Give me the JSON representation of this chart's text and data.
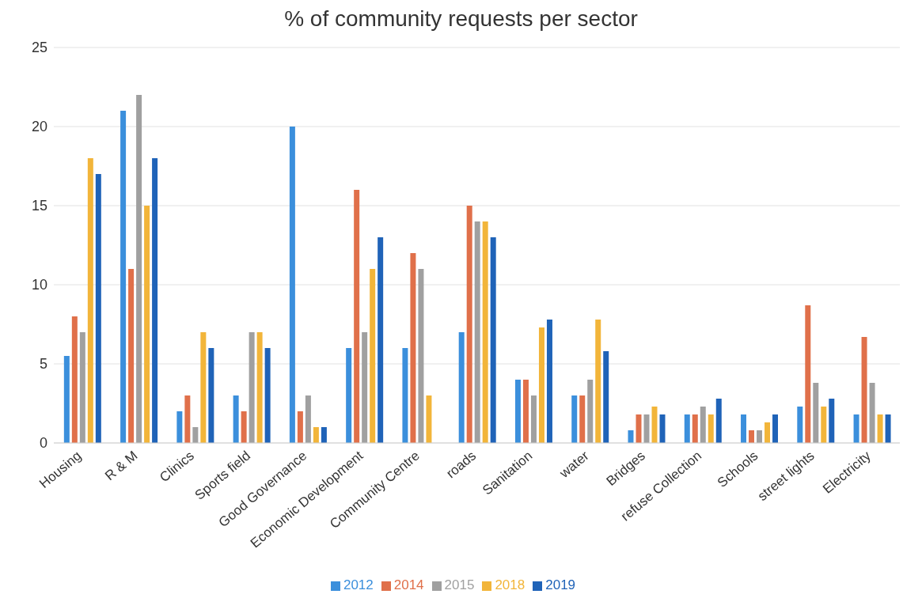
{
  "chart_data": {
    "type": "bar",
    "title": "% of community requests per sector",
    "categories": [
      "Housing",
      "R & M",
      "Clinics",
      "Sports field",
      "Good Governance",
      "Economic Development",
      "Community Centre",
      "roads",
      "Sanitation",
      "water",
      "Bridges",
      "refuse Collection",
      "Schools",
      "street lights",
      "Electricity"
    ],
    "series": [
      {
        "name": "2012",
        "color": "#3b8fdc",
        "values": [
          5.5,
          21,
          2,
          3,
          20,
          6,
          6,
          7,
          4,
          3,
          0.8,
          1.8,
          1.8,
          2.3,
          1.8
        ]
      },
      {
        "name": "2014",
        "color": "#e0704a",
        "values": [
          8,
          11,
          3,
          2,
          2,
          16,
          12,
          15,
          4,
          3,
          1.8,
          1.8,
          0.8,
          8.7,
          6.7
        ]
      },
      {
        "name": "2015",
        "color": "#a0a0a0",
        "values": [
          7,
          22,
          1,
          7,
          3,
          7,
          11,
          14,
          3,
          4,
          1.8,
          2.3,
          0.8,
          3.8,
          3.8
        ]
      },
      {
        "name": "2018",
        "color": "#f2b53a",
        "values": [
          18,
          15,
          7,
          7,
          1,
          11,
          3,
          14,
          7.3,
          7.8,
          2.3,
          1.8,
          1.3,
          2.3,
          1.8
        ]
      },
      {
        "name": "2019",
        "color": "#1f63b8",
        "values": [
          17,
          18,
          6,
          6,
          1,
          13,
          null,
          13,
          7.8,
          5.8,
          1.8,
          2.8,
          1.8,
          2.8,
          1.8
        ]
      }
    ],
    "ylim": [
      0,
      25
    ],
    "yticks": [
      0,
      5,
      10,
      15,
      20,
      25
    ],
    "grid": "y",
    "legend": "bottom"
  }
}
